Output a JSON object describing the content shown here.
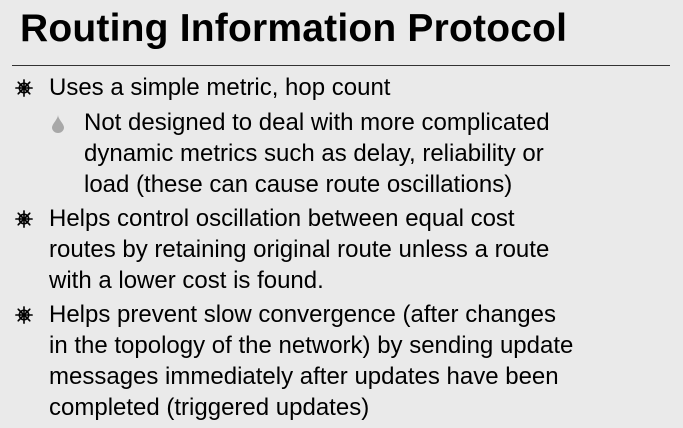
{
  "slide": {
    "title": "Routing Information Protocol",
    "bullets": [
      {
        "level": 1,
        "icon": "wheel-bullet-icon",
        "text": "Uses a simple metric, hop count"
      },
      {
        "level": 2,
        "icon": "drop-bullet-icon",
        "text": "Not designed to deal with more complicated\ndynamic metrics such as delay, reliability or\nload (these can cause route oscillations)"
      },
      {
        "level": 1,
        "icon": "wheel-bullet-icon",
        "text": "Helps control oscillation between equal cost\nroutes by retaining original route unless a route\nwith a lower cost is found."
      },
      {
        "level": 1,
        "icon": "wheel-bullet-icon",
        "text": "Helps prevent slow convergence (after changes\nin the topology of the network) by sending update\nmessages immediately after updates have been\ncompleted (triggered updates)"
      }
    ],
    "colors": {
      "background": "#eaeaea",
      "text": "#000000",
      "rule": "#333333",
      "drop_bullet": "#a8a8a8"
    }
  }
}
